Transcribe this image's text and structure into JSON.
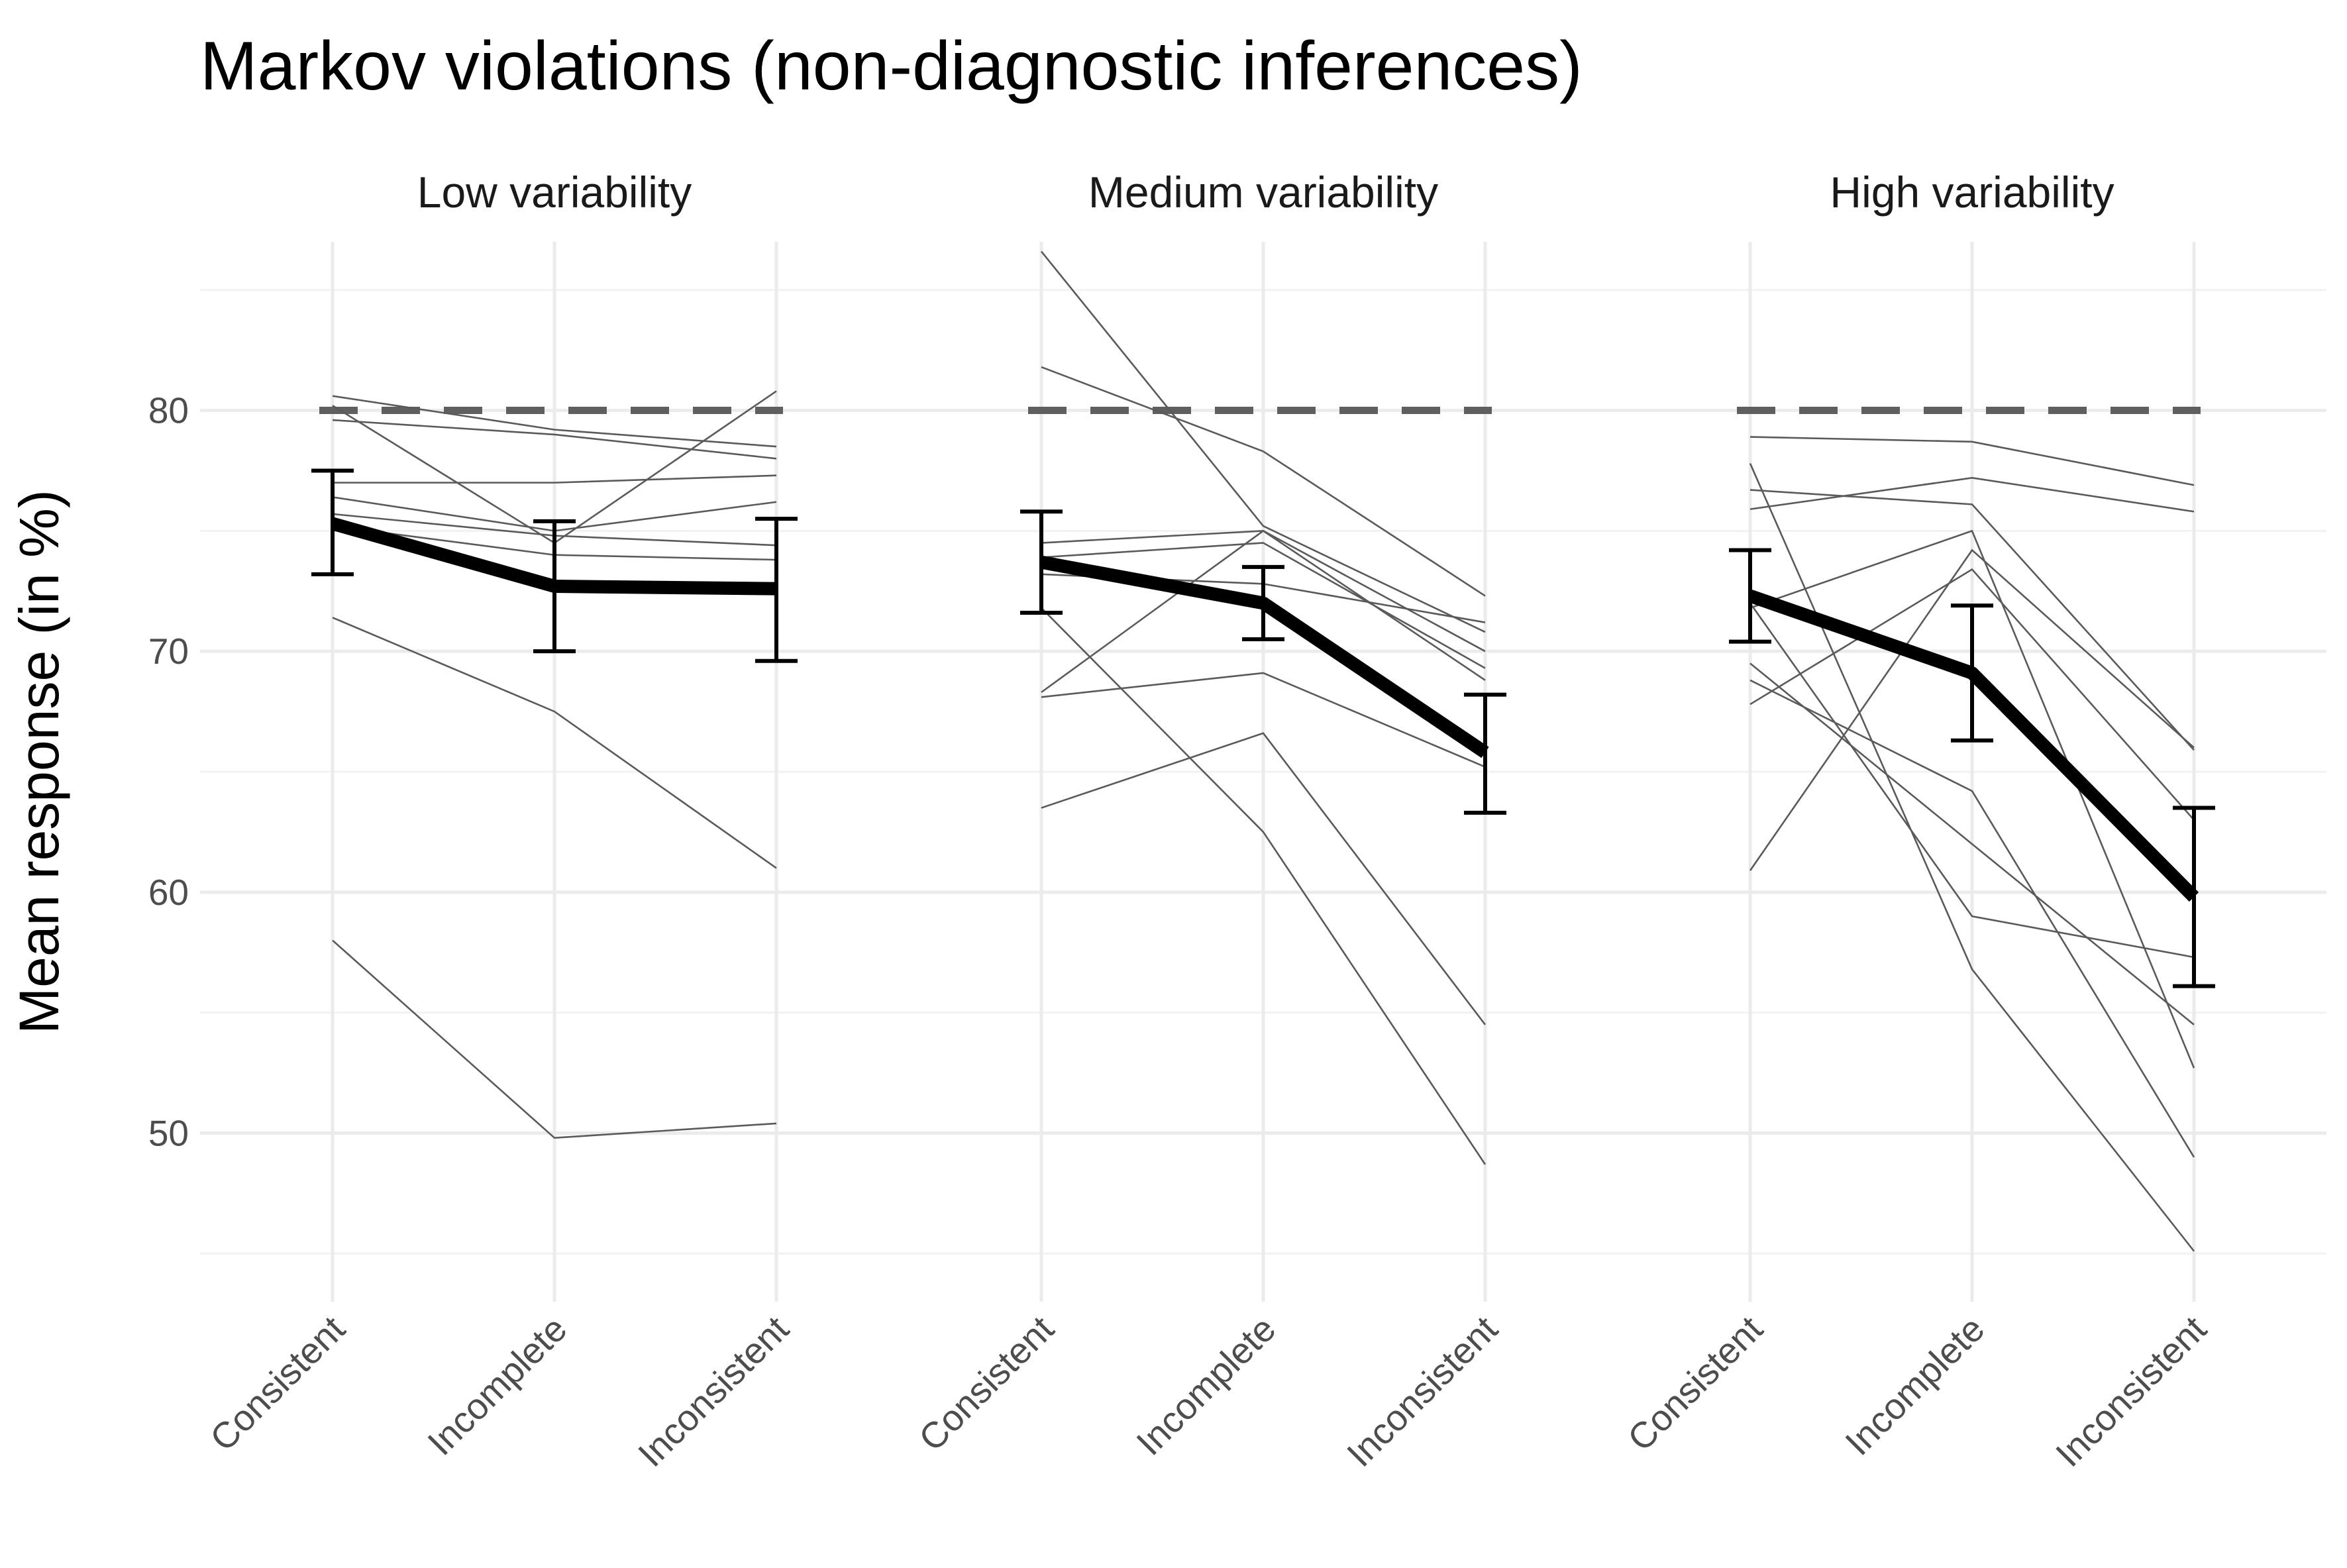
{
  "chart_data": {
    "type": "line",
    "title": "Markov violations (non-diagnostic inferences)",
    "xlabel": "",
    "ylabel": "Mean response (in %)",
    "categories": [
      "Consistent",
      "Incomplete",
      "Inconsistent"
    ],
    "ylim": [
      43,
      87
    ],
    "yticks": [
      50,
      60,
      70,
      80
    ],
    "grid": true,
    "legend": "none",
    "reference_value": 80,
    "panels": [
      {
        "label": "Low variability",
        "mean": [
          75.3,
          72.7,
          72.6
        ],
        "error_low": [
          73.2,
          70.0,
          69.6
        ],
        "error_high": [
          77.5,
          75.4,
          75.5
        ],
        "individual": [
          [
            80.6,
            79.2,
            78.5
          ],
          [
            80.2,
            74.5,
            80.8
          ],
          [
            79.6,
            79.0,
            78.0
          ],
          [
            77.0,
            77.0,
            77.3
          ],
          [
            76.4,
            75.0,
            76.2
          ],
          [
            75.7,
            74.8,
            74.4
          ],
          [
            75.2,
            74.0,
            73.8
          ],
          [
            71.4,
            67.5,
            61.0
          ],
          [
            58.0,
            49.8,
            50.4
          ]
        ]
      },
      {
        "label": "Medium variability",
        "mean": [
          73.7,
          72.0,
          65.8
        ],
        "error_low": [
          71.6,
          70.5,
          63.3
        ],
        "error_high": [
          75.8,
          73.5,
          68.2
        ],
        "individual": [
          [
            86.6,
            75.2,
            70.8
          ],
          [
            81.8,
            78.3,
            72.3
          ],
          [
            74.5,
            75.0,
            70.0
          ],
          [
            73.9,
            74.5,
            69.3
          ],
          [
            73.2,
            72.8,
            71.2
          ],
          [
            68.3,
            75.0,
            68.8
          ],
          [
            71.8,
            62.5,
            48.7
          ],
          [
            68.1,
            69.1,
            65.2
          ],
          [
            63.5,
            66.6,
            54.5
          ]
        ]
      },
      {
        "label": "High variability",
        "mean": [
          72.3,
          69.1,
          59.8
        ],
        "error_low": [
          70.4,
          66.3,
          56.1
        ],
        "error_high": [
          74.2,
          71.9,
          63.5
        ],
        "individual": [
          [
            78.9,
            78.7,
            76.9
          ],
          [
            76.7,
            76.1,
            65.9
          ],
          [
            75.9,
            77.2,
            75.8
          ],
          [
            77.8,
            56.8,
            45.1
          ],
          [
            71.8,
            75.0,
            52.7
          ],
          [
            72.0,
            59.0,
            57.3
          ],
          [
            69.5,
            62.0,
            54.5
          ],
          [
            68.8,
            64.2,
            49.0
          ],
          [
            67.8,
            73.4,
            63.0
          ],
          [
            60.9,
            74.2,
            66.0
          ]
        ]
      }
    ]
  }
}
